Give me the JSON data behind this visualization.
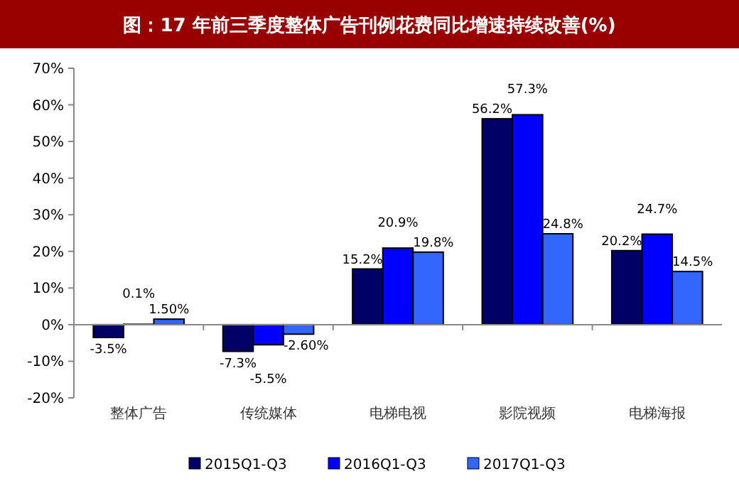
{
  "chart_data": {
    "type": "bar",
    "title": "图：17 年前三季度整体广告刊例花费同比增速持续改善(%)",
    "categories": [
      "整体广告",
      "传统媒体",
      "电梯电视",
      "影院视频",
      "电梯海报"
    ],
    "series": [
      {
        "name": "2015Q1-Q3",
        "color": "#000066",
        "values": [
          -3.5,
          -7.3,
          15.2,
          56.2,
          20.2
        ],
        "value_labels": [
          "-3.5%",
          "-7.3%",
          "15.2%",
          "56.2%",
          "20.2%"
        ]
      },
      {
        "name": "2016Q1-Q3",
        "color": "#0000ff",
        "values": [
          0.1,
          -5.5,
          20.9,
          57.3,
          24.7
        ],
        "value_labels": [
          "0.1%",
          "-5.5%",
          "20.9%",
          "57.3%",
          "24.7%"
        ]
      },
      {
        "name": "2017Q1-Q3",
        "color": "#3366ff",
        "values": [
          1.5,
          -2.6,
          19.8,
          24.8,
          14.5
        ],
        "value_labels": [
          "1.50%",
          "-2.60%",
          "19.8%",
          "24.8%",
          "14.5%"
        ]
      }
    ],
    "ylim": [
      -20,
      70
    ],
    "yticks": [
      {
        "value": -20,
        "label": "-20%"
      },
      {
        "value": -10,
        "label": "-10%"
      },
      {
        "value": 0,
        "label": "0%"
      },
      {
        "value": 10,
        "label": "10%"
      },
      {
        "value": 20,
        "label": "20%"
      },
      {
        "value": 30,
        "label": "30%"
      },
      {
        "value": 40,
        "label": "40%"
      },
      {
        "value": 50,
        "label": "50%"
      },
      {
        "value": 60,
        "label": "60%"
      },
      {
        "value": 70,
        "label": "70%"
      }
    ],
    "legend": "bottom"
  }
}
